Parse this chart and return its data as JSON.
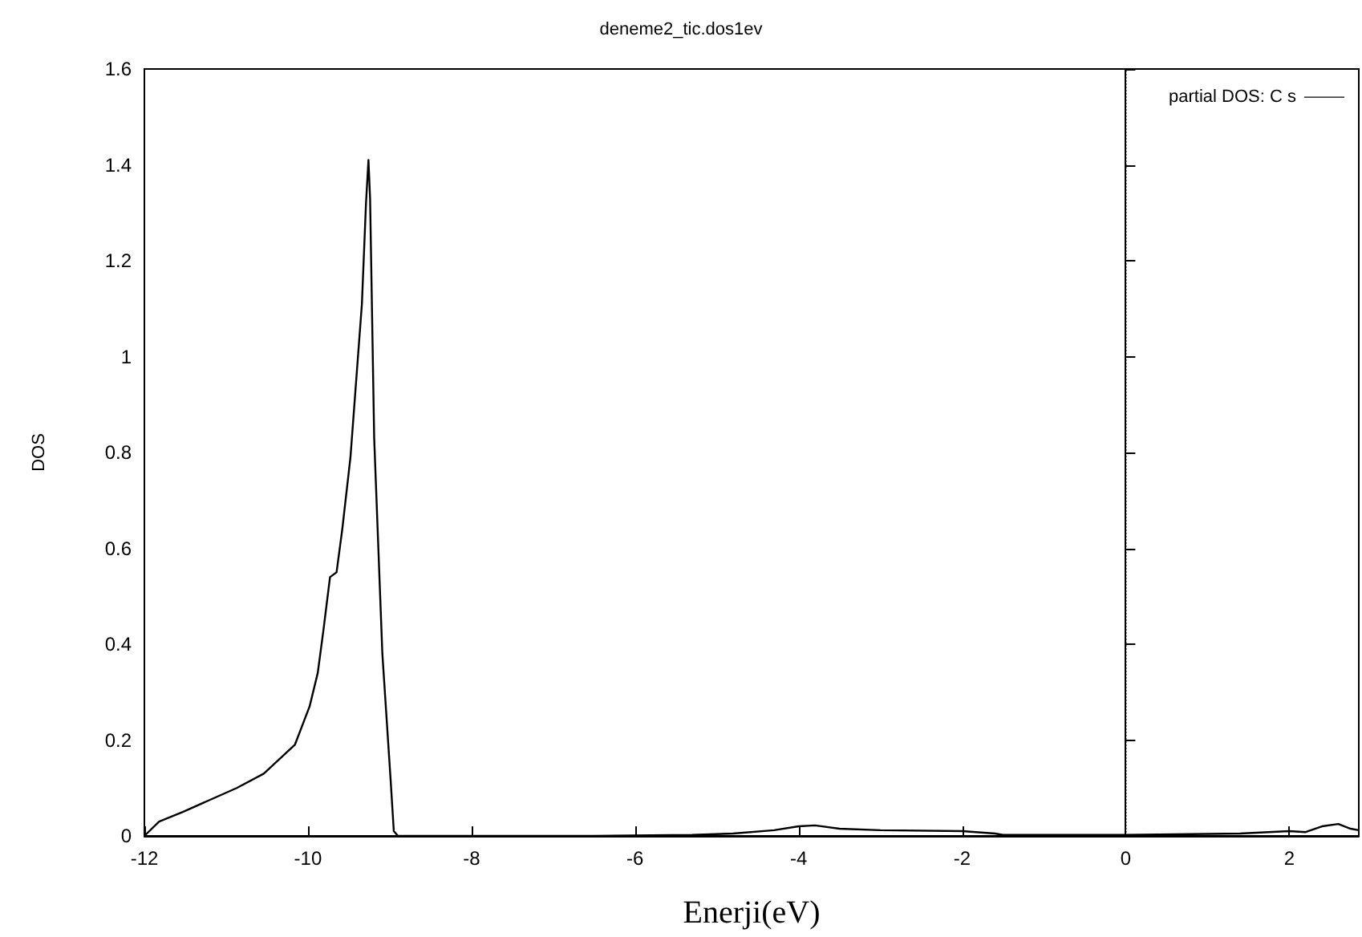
{
  "chart_data": {
    "type": "line",
    "title": "deneme2_tic.dos1ev",
    "xlabel": "Enerji(eV)",
    "ylabel": "DOS",
    "xlim": [
      -12,
      2.85
    ],
    "xticks": [
      -12,
      -10,
      -8,
      -6,
      -4,
      -2,
      0,
      2
    ],
    "ylim": [
      0,
      1.6
    ],
    "yticks": [
      0,
      0.2,
      0.4,
      0.6,
      0.8,
      1,
      1.2,
      1.4,
      1.6
    ],
    "grid": false,
    "legend": "top right",
    "marker": "none",
    "line_style": "solid",
    "ref_lines": [
      {
        "axis": "x",
        "value": 0,
        "line_style": "dotted",
        "color": "#000000"
      }
    ],
    "series": [
      {
        "name": "partial DOS: C s",
        "color": "#000000",
        "x": [
          -12,
          -11.82,
          -11.53,
          -10.87,
          -10.54,
          -10.16,
          -9.98,
          -9.88,
          -9.81,
          -9.73,
          -9.65,
          -9.58,
          -9.48,
          -9.34,
          -9.29,
          -9.26,
          -9.24,
          -9.19,
          -9.09,
          -8.99,
          -8.95,
          -8.9,
          -6.5,
          -5.3,
          -4.8,
          -4.3,
          -4,
          -3.8,
          -3.5,
          -3,
          -2,
          -1.6,
          -1.5,
          0,
          1.4,
          2,
          2.2,
          2.4,
          2.6,
          2.75,
          2.85
        ],
        "values": [
          0,
          0.03,
          0.05,
          0.1,
          0.13,
          0.19,
          0.27,
          0.34,
          0.43,
          0.54,
          0.55,
          0.64,
          0.79,
          1.11,
          1.32,
          1.41,
          1.33,
          0.83,
          0.38,
          0.12,
          0.01,
          0,
          0,
          0.002,
          0.005,
          0.012,
          0.02,
          0.022,
          0.015,
          0.012,
          0.01,
          0.005,
          0.002,
          0.002,
          0.005,
          0.01,
          0.008,
          0.02,
          0.025,
          0.015,
          0.012
        ]
      }
    ]
  }
}
